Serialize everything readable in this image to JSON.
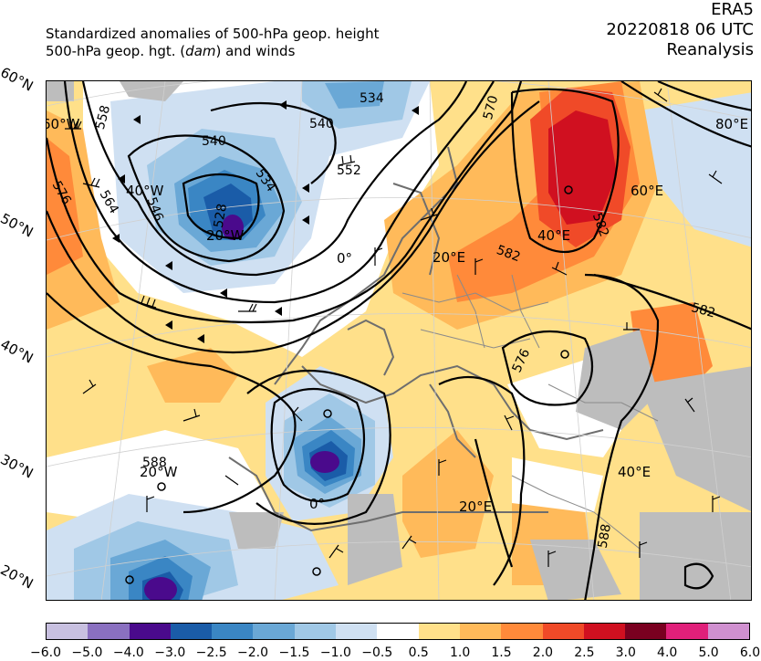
{
  "header": {
    "title_line1": "Standardized anomalies of 500-hPa geop. height",
    "title_line2_pre": "500-hPa geop. hgt. (",
    "title_line2_unit": "dam",
    "title_line2_post": ") and winds",
    "model": "ERA5",
    "datetime": "20220818 06 UTC",
    "product": "Reanalysis"
  },
  "lat_labels": [
    "60°N",
    "50°N",
    "40°N",
    "30°N",
    "20°N"
  ],
  "map_labels": {
    "lon_60w": "60°W",
    "lon_40w": "40°W",
    "lon_20w_top": "20°W",
    "lon_0_top": "0°",
    "lon_20e_top": "20°E",
    "lon_40e_top": "40°E",
    "lon_60e": "60°E",
    "lon_80e": "80°E",
    "lon_20w_bottom": "20°W",
    "lon_0_bottom": "0°",
    "lon_20e_bottom": "20°E",
    "lon_40e_bottom": "40°E"
  },
  "contour_labels": {
    "c558": "558",
    "c540a": "540",
    "c534a": "534",
    "c540b": "540",
    "c534b": "534",
    "c552": "552",
    "c546": "546",
    "c528": "528",
    "c576a": "576",
    "c564": "564",
    "c570": "570",
    "c582a": "582",
    "c582b": "582",
    "c582c": "582",
    "c576b": "576",
    "c588a": "588",
    "c588b": "588"
  },
  "colorbar": {
    "colors": [
      "#c8c0e0",
      "#8a70c0",
      "#4a0a8c",
      "#1a5ca8",
      "#3a86c4",
      "#6aa8d6",
      "#a0c8e6",
      "#cfe0f2",
      "#ffffff",
      "#ffe08a",
      "#ffba5a",
      "#ff8a3a",
      "#f04a28",
      "#d01020",
      "#7a0020",
      "#e0207a",
      "#d090d0"
    ],
    "ticks": [
      "−6.0",
      "−5.0",
      "−4.0",
      "−3.0",
      "−2.5",
      "−2.0",
      "−1.5",
      "−1.0",
      "−0.5",
      "0.5",
      "1.0",
      "1.5",
      "2.0",
      "2.5",
      "3.0",
      "4.0",
      "5.0",
      "6.0"
    ]
  }
}
